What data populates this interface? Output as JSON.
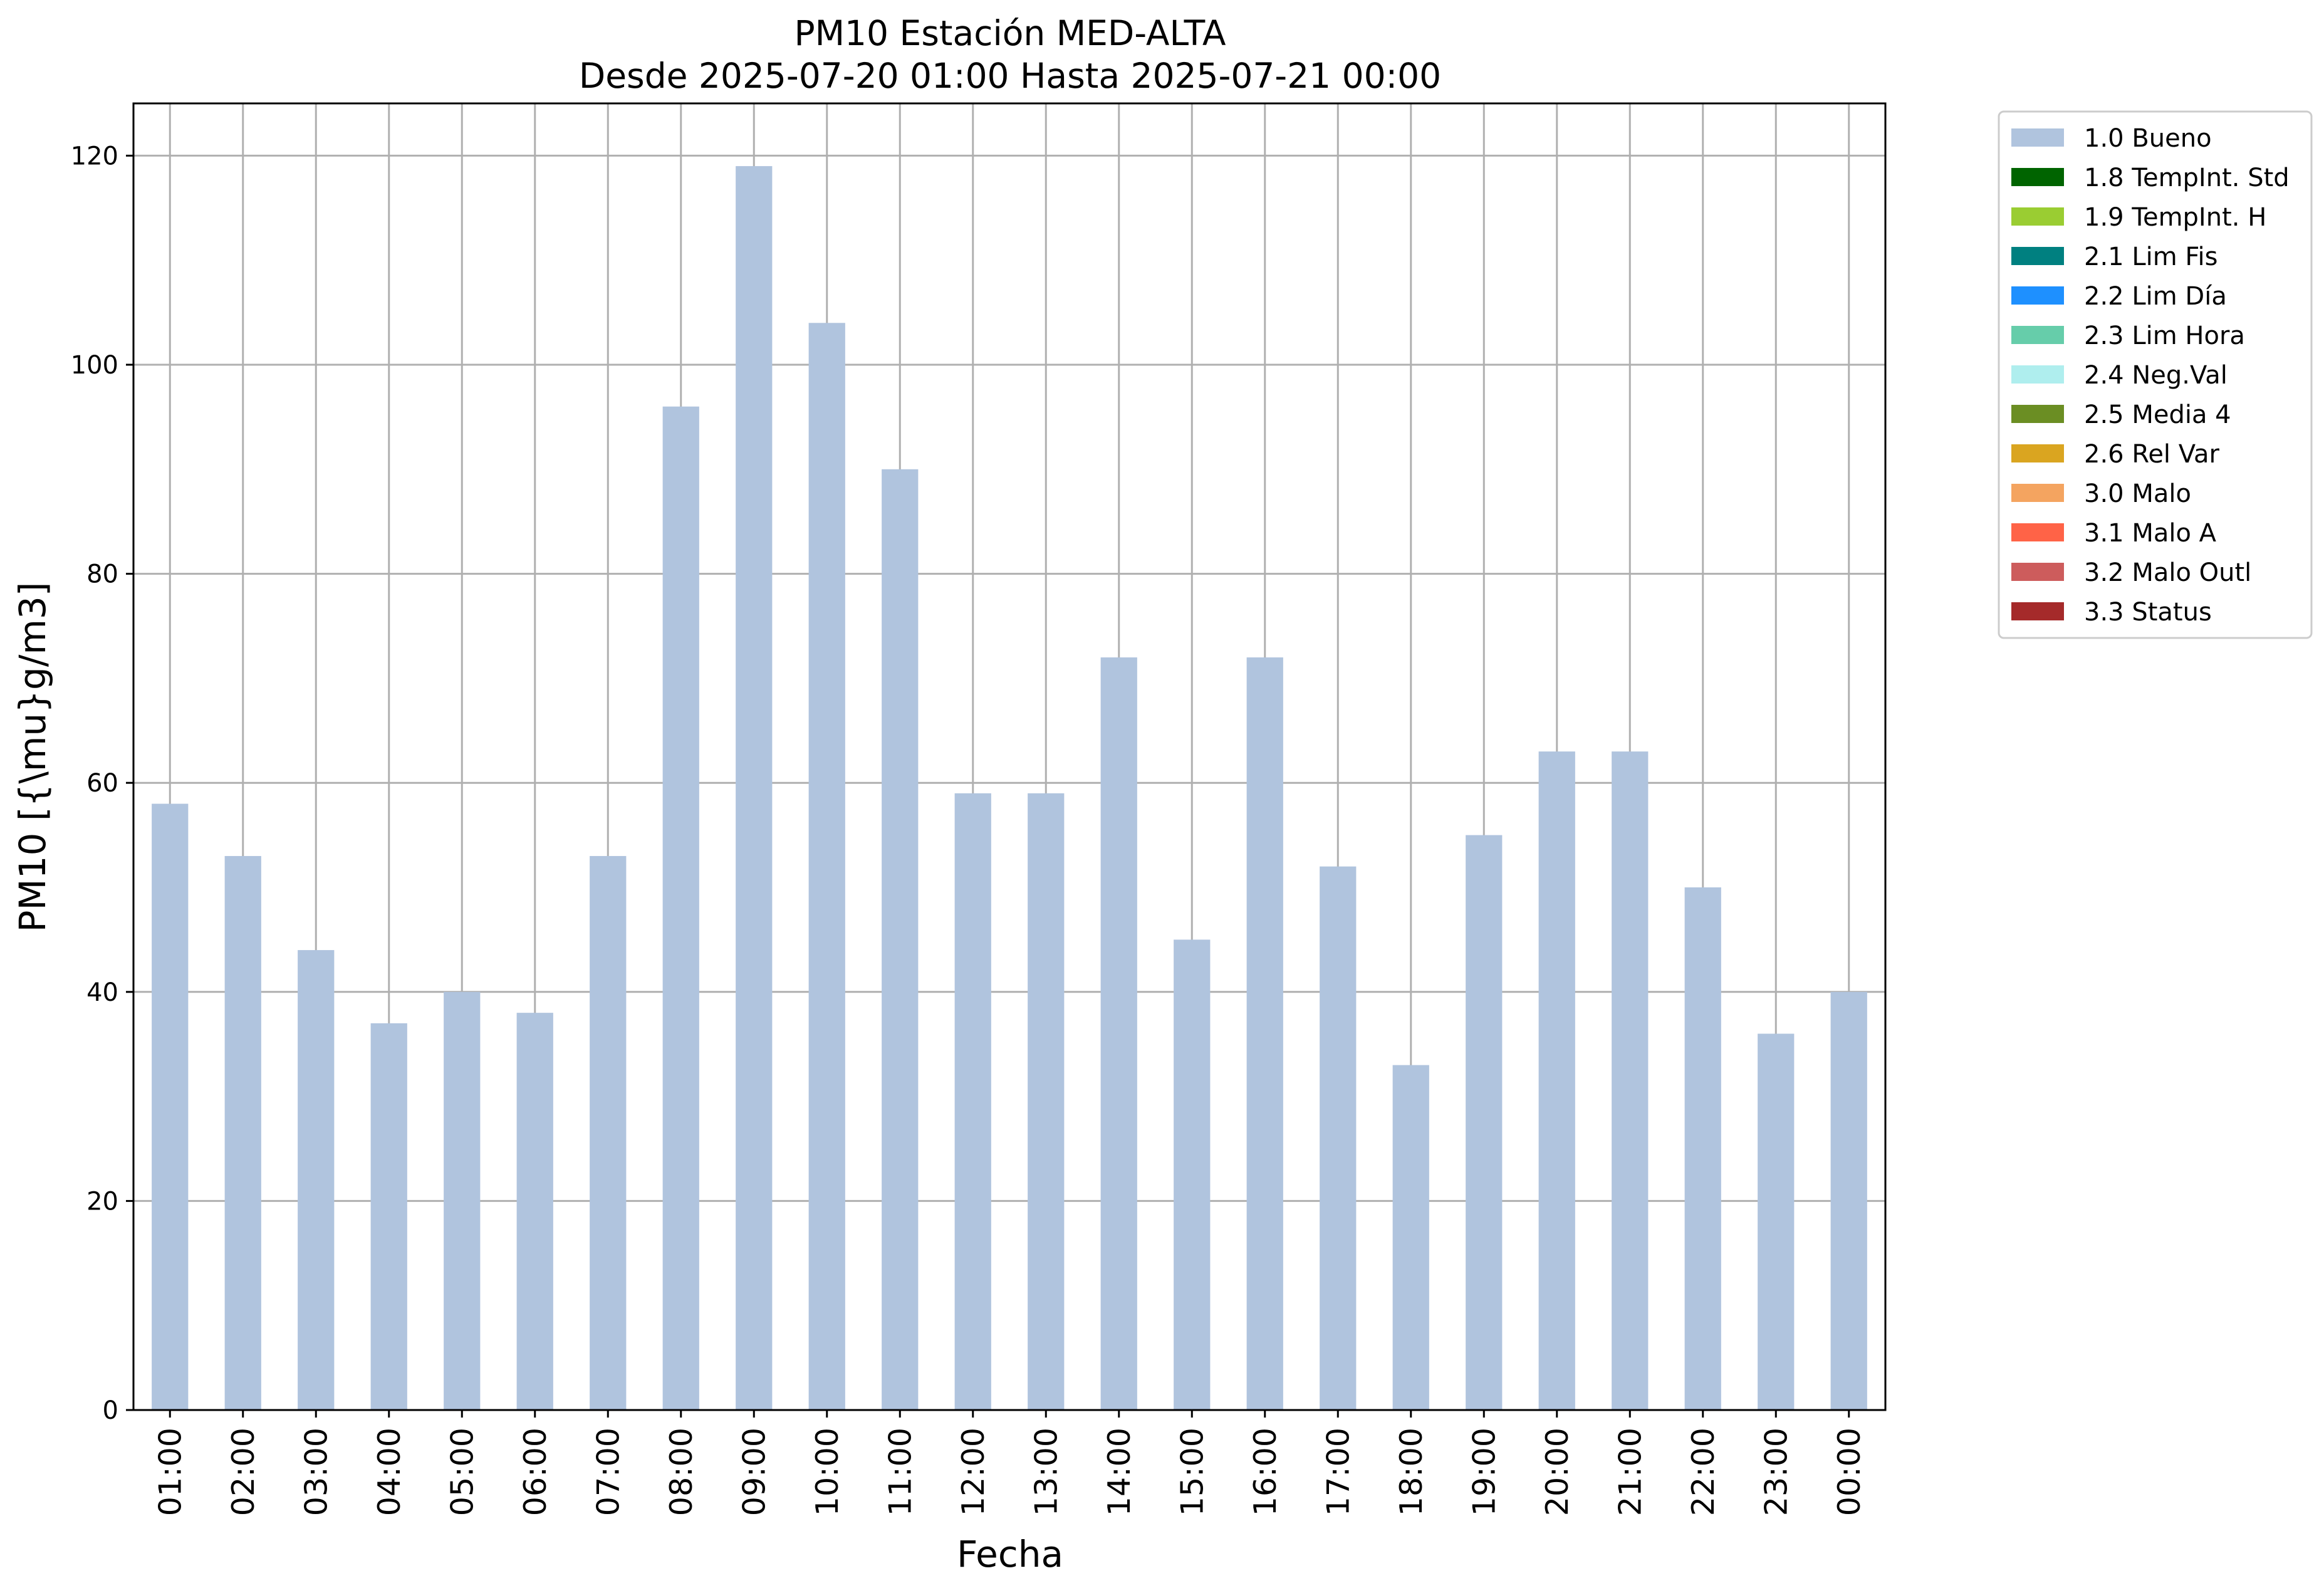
{
  "chart_data": {
    "type": "bar",
    "title": "PM10 Estación MED-ALTA",
    "subtitle": "Desde 2025-07-20 01:00 Hasta 2025-07-21 00:00",
    "xlabel": "Fecha",
    "ylabel": "PM10 [{\\mu}g/m3]",
    "ylim": [
      0,
      125
    ],
    "yticks": [
      0,
      20,
      40,
      60,
      80,
      100,
      120
    ],
    "grid": true,
    "legend_position": "outside top-right",
    "categories": [
      "01:00",
      "02:00",
      "03:00",
      "04:00",
      "05:00",
      "06:00",
      "07:00",
      "08:00",
      "09:00",
      "10:00",
      "11:00",
      "12:00",
      "13:00",
      "14:00",
      "15:00",
      "16:00",
      "17:00",
      "18:00",
      "19:00",
      "20:00",
      "21:00",
      "22:00",
      "23:00",
      "00:00"
    ],
    "series": [
      {
        "name": "1.0 Bueno",
        "color": "#b0c4de",
        "values": [
          58,
          53,
          44,
          37,
          40,
          38,
          53,
          96,
          119,
          104,
          90,
          59,
          59,
          72,
          45,
          72,
          52,
          33,
          55,
          63,
          63,
          50,
          36,
          40
        ]
      }
    ],
    "legend": [
      {
        "label": "1.0 Bueno",
        "color": "#b0c4de"
      },
      {
        "label": "1.8 TempInt. Std",
        "color": "#006400"
      },
      {
        "label": "1.9 TempInt. H",
        "color": "#9acd32"
      },
      {
        "label": "2.1 Lim Fis",
        "color": "#008080"
      },
      {
        "label": "2.2 Lim Día",
        "color": "#1e90ff"
      },
      {
        "label": "2.3 Lim Hora",
        "color": "#66cdaa"
      },
      {
        "label": "2.4 Neg.Val",
        "color": "#afeeee"
      },
      {
        "label": "2.5 Media 4",
        "color": "#6b8e23"
      },
      {
        "label": "2.6 Rel Var",
        "color": "#daa520"
      },
      {
        "label": "3.0 Malo",
        "color": "#f4a460"
      },
      {
        "label": "3.1 Malo A",
        "color": "#ff6347"
      },
      {
        "label": "3.2 Malo Outl",
        "color": "#cd5c5c"
      },
      {
        "label": "3.3 Status",
        "color": "#a52a2a"
      }
    ]
  }
}
